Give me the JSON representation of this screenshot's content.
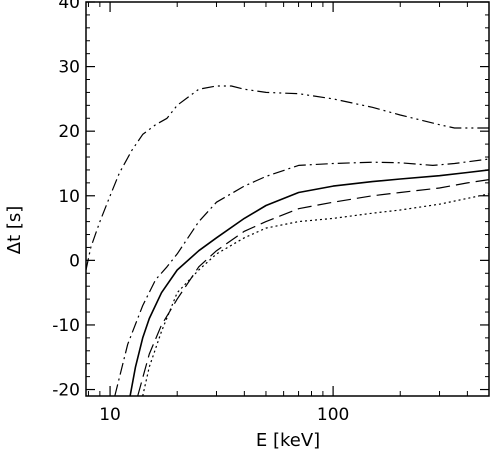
{
  "chart_data": {
    "type": "line",
    "xlabel": "E [keV]",
    "ylabel": "Δt [s]",
    "x_scale": "log",
    "xlim": [
      7.8,
      500
    ],
    "ylim": [
      -21,
      40
    ],
    "grid": false,
    "x_ticks": [
      {
        "value": 10,
        "label": "10"
      },
      {
        "value": 100,
        "label": "100"
      }
    ],
    "y_ticks": [
      {
        "value": -20,
        "label": "-20"
      },
      {
        "value": -10,
        "label": "-10"
      },
      {
        "value": 0,
        "label": "0"
      },
      {
        "value": 10,
        "label": "10"
      },
      {
        "value": 20,
        "label": "20"
      },
      {
        "value": 30,
        "label": "30"
      },
      {
        "value": 40,
        "label": "40"
      }
    ],
    "series": [
      {
        "style": "solid",
        "points": [
          [
            12.3,
            -21
          ],
          [
            13,
            -16.5
          ],
          [
            14,
            -12
          ],
          [
            15,
            -9
          ],
          [
            17,
            -5
          ],
          [
            20,
            -1.5
          ],
          [
            25,
            1.5
          ],
          [
            30,
            3.5
          ],
          [
            40,
            6.5
          ],
          [
            50,
            8.5
          ],
          [
            70,
            10.5
          ],
          [
            100,
            11.5
          ],
          [
            150,
            12.2
          ],
          [
            200,
            12.6
          ],
          [
            300,
            13.1
          ],
          [
            400,
            13.6
          ],
          [
            500,
            14
          ]
        ]
      },
      {
        "style": "dash-dot",
        "points": [
          [
            10.5,
            -21
          ],
          [
            12,
            -13
          ],
          [
            14,
            -7
          ],
          [
            16,
            -3
          ],
          [
            18,
            -1
          ],
          [
            20,
            1
          ],
          [
            25,
            6
          ],
          [
            30,
            9
          ],
          [
            40,
            11.5
          ],
          [
            50,
            13
          ],
          [
            70,
            14.7
          ],
          [
            100,
            15
          ],
          [
            150,
            15.2
          ],
          [
            200,
            15.1
          ],
          [
            280,
            14.7
          ],
          [
            350,
            15
          ],
          [
            500,
            15.7
          ]
        ]
      },
      {
        "style": "dashed",
        "points": [
          [
            13.3,
            -21
          ],
          [
            15,
            -14.5
          ],
          [
            17,
            -10
          ],
          [
            20,
            -6
          ],
          [
            25,
            -1
          ],
          [
            30,
            1.5
          ],
          [
            40,
            4.5
          ],
          [
            50,
            6
          ],
          [
            70,
            8
          ],
          [
            100,
            9
          ],
          [
            150,
            10
          ],
          [
            200,
            10.5
          ],
          [
            300,
            11.2
          ],
          [
            400,
            12
          ],
          [
            500,
            12.5
          ]
        ]
      },
      {
        "style": "dotted",
        "points": [
          [
            14,
            -21
          ],
          [
            15,
            -16.5
          ],
          [
            17,
            -11
          ],
          [
            20,
            -5
          ],
          [
            25,
            -1.5
          ],
          [
            30,
            1
          ],
          [
            40,
            3.5
          ],
          [
            50,
            5
          ],
          [
            70,
            6
          ],
          [
            100,
            6.5
          ],
          [
            150,
            7.3
          ],
          [
            200,
            7.8
          ],
          [
            300,
            8.7
          ],
          [
            400,
            9.6
          ],
          [
            500,
            10.3
          ]
        ]
      },
      {
        "style": "dash-dot-dot",
        "points": [
          [
            7.8,
            -1.5
          ],
          [
            8.2,
            2
          ],
          [
            9,
            6
          ],
          [
            10,
            10
          ],
          [
            11,
            13.5
          ],
          [
            12.5,
            17
          ],
          [
            14,
            19.5
          ],
          [
            16,
            21
          ],
          [
            18,
            22
          ],
          [
            20,
            24
          ],
          [
            25,
            26.5
          ],
          [
            30,
            27
          ],
          [
            35,
            27
          ],
          [
            40,
            26.5
          ],
          [
            50,
            26
          ],
          [
            70,
            25.8
          ],
          [
            100,
            25
          ],
          [
            150,
            23.7
          ],
          [
            200,
            22.5
          ],
          [
            300,
            21
          ],
          [
            350,
            20.5
          ],
          [
            400,
            20.5
          ],
          [
            500,
            20.5
          ]
        ]
      }
    ]
  }
}
